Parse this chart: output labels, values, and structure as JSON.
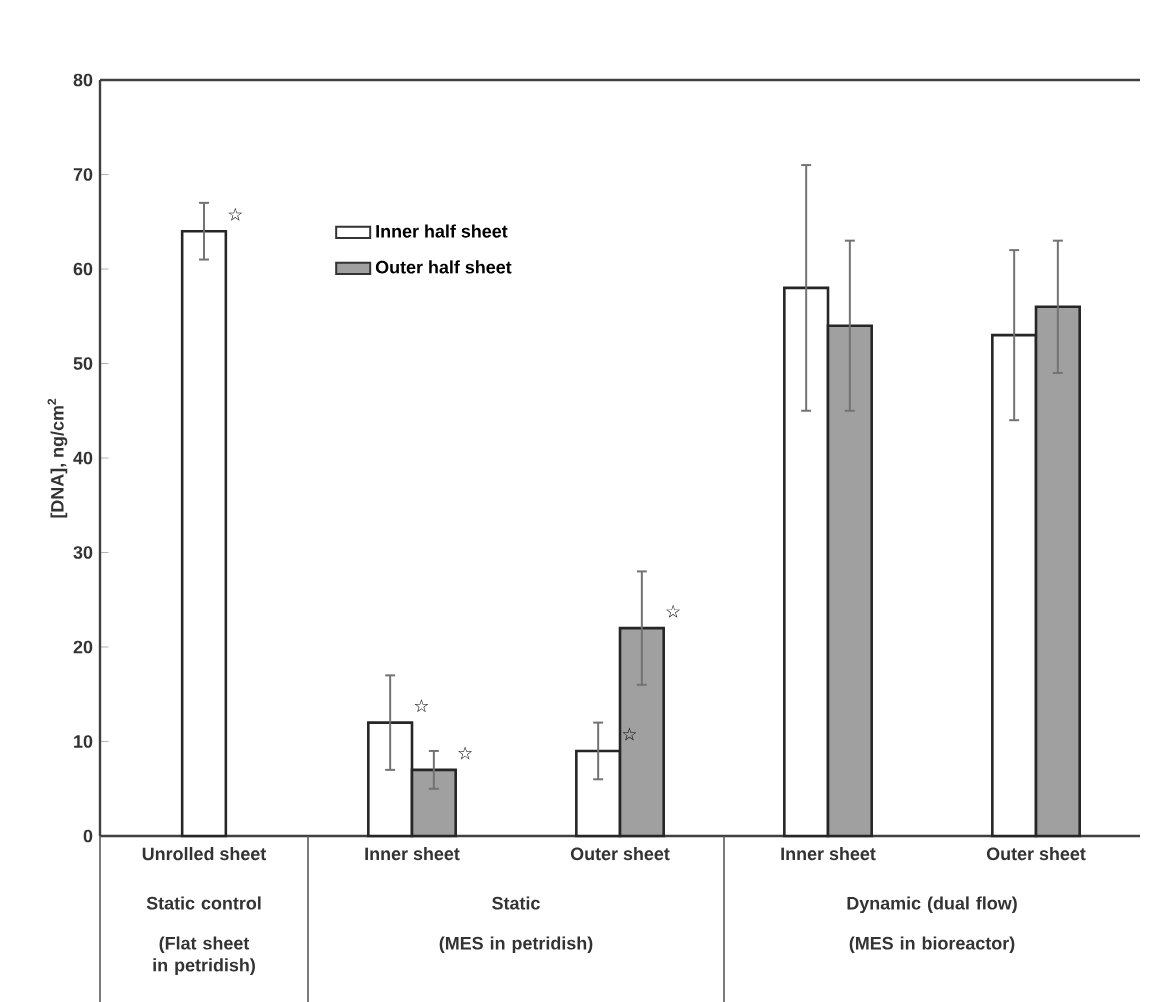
{
  "chart_data": {
    "type": "bar",
    "ylabel": "[DNA], ng/cm$^{2}$",
    "categories": [
      "Unrolled sheet",
      "Inner sheet",
      "Outer sheet",
      "Inner sheet",
      "Outer sheet"
    ],
    "series": [
      {
        "name": "Inner half sheet",
        "color": "#ffffff",
        "values": [
          64,
          12,
          9,
          58,
          53
        ],
        "errors": [
          3,
          5,
          3,
          13,
          9
        ]
      },
      {
        "name": "Outer half sheet",
        "color": "#a0a0a0",
        "values": [
          null,
          7,
          22,
          54,
          56
        ],
        "errors": [
          null,
          2,
          6,
          9,
          7
        ]
      }
    ],
    "ylim": [
      0,
      80
    ],
    "yticks": [
      0,
      10,
      20,
      30,
      40,
      50,
      60,
      70,
      80
    ],
    "grid": false,
    "legend": "top left",
    "annotations": [
      {
        "text": "☆",
        "x": "Unrolled sheet",
        "y": 64
      },
      {
        "text": "☆",
        "x": "Inner sheet",
        "y": 12
      },
      {
        "text": "☆",
        "x": "Inner sheet",
        "y": 7
      },
      {
        "text": "☆",
        "x": "Outer sheet",
        "y": 9
      },
      {
        "text": "☆",
        "x": "Outer sheet",
        "y": 22
      },
      "Static control",
      "(Flat sheet in petridish)",
      "Static",
      "(MES in petridish)",
      "Dynamic (dual flow)",
      "(MES in bioreactor)"
    ]
  }
}
